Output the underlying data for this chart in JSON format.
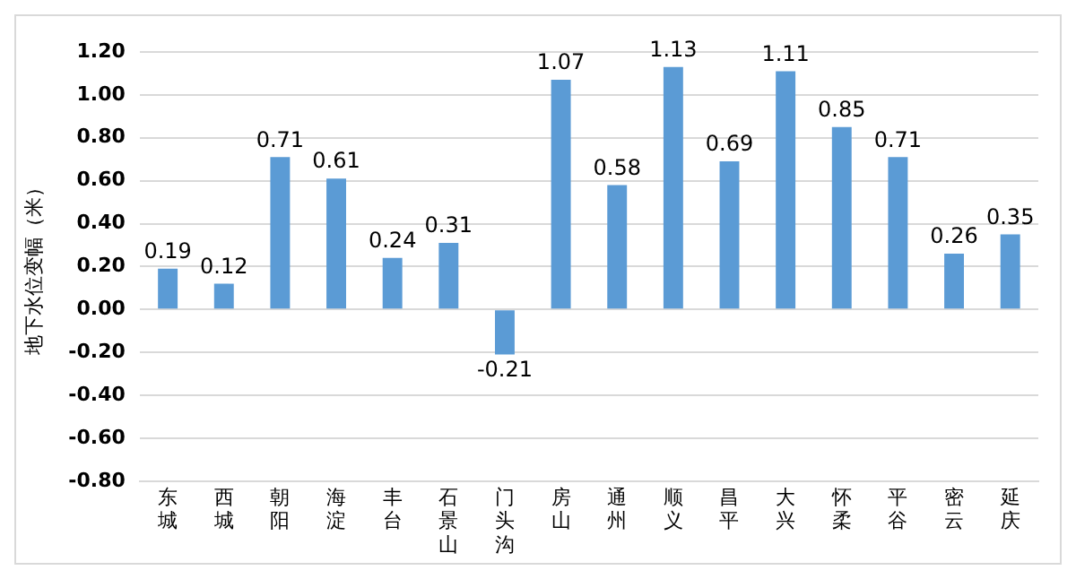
{
  "chart_data": {
    "type": "bar",
    "ylabel": "地下水位变幅（米）",
    "categories": [
      "东城",
      "西城",
      "朝阳",
      "海淀",
      "丰台",
      "石景山",
      "门头沟",
      "房山",
      "通州",
      "顺义",
      "昌平",
      "大兴",
      "怀柔",
      "平谷",
      "密云",
      "延庆"
    ],
    "values": [
      0.19,
      0.12,
      0.71,
      0.61,
      0.24,
      0.31,
      -0.21,
      1.07,
      0.58,
      1.13,
      0.69,
      1.11,
      0.85,
      0.71,
      0.26,
      0.35
    ],
    "color": "#5b9bd5",
    "data_labels": true,
    "grid": "y",
    "legend": false,
    "ylim": [
      -0.8,
      1.2
    ],
    "yticks": [
      {
        "value": -0.8,
        "label": "-0.80"
      },
      {
        "value": -0.6,
        "label": "-0.60"
      },
      {
        "value": -0.4,
        "label": "-0.40"
      },
      {
        "value": -0.2,
        "label": "-0.20"
      },
      {
        "value": 0,
        "label": "0.00"
      },
      {
        "value": 0.2,
        "label": "0.20"
      },
      {
        "value": 0.4,
        "label": "0.40"
      },
      {
        "value": 0.6,
        "label": "0.60"
      },
      {
        "value": 0.8,
        "label": "0.80"
      },
      {
        "value": 1.0,
        "label": "1.00"
      },
      {
        "value": 1.2,
        "label": "1.20"
      }
    ]
  }
}
